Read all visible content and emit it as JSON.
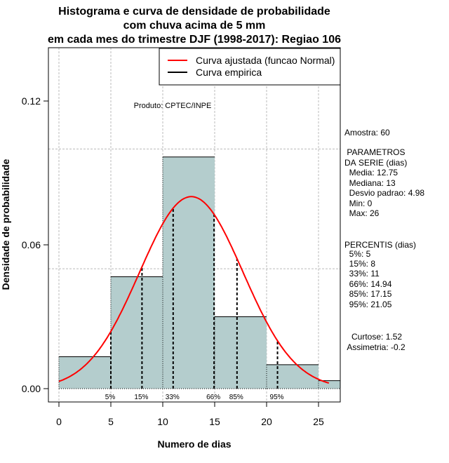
{
  "chart_data": {
    "type": "bar",
    "title": [
      "Histograma e curva de densidade de probabilidade",
      "com chuva acima de 5 mm",
      "em cada mes do trimestre DJF (1998-2017): Regiao 106"
    ],
    "xlabel": "Numero de dias",
    "ylabel": "Densidade de probabilidade",
    "xlim": [
      -1,
      27.1
    ],
    "ylim": [
      -0.0055,
      0.1365
    ],
    "xticks": [
      0,
      5,
      10,
      15,
      20,
      25
    ],
    "yticks": [
      0.0,
      0.06,
      0.12
    ],
    "ytick_labels": [
      "0.00",
      "0.06",
      "0.12"
    ],
    "ygrid": [
      0.05,
      0.1
    ],
    "bins": [
      [
        0,
        5
      ],
      [
        5,
        10
      ],
      [
        10,
        15
      ],
      [
        15,
        20
      ],
      [
        20,
        25
      ],
      [
        25,
        30
      ]
    ],
    "values": [
      0.01333,
      0.04667,
      0.09667,
      0.03,
      0.01,
      0.00333
    ],
    "normal_curve": {
      "mean": 12.75,
      "sd": 4.98,
      "from": 0,
      "to": 26
    },
    "percentiles": [
      {
        "label": "5%",
        "x": 5
      },
      {
        "label": "15%",
        "x": 8
      },
      {
        "label": "33%",
        "x": 11
      },
      {
        "label": "66%",
        "x": 14.94
      },
      {
        "label": "85%",
        "x": 17.15
      },
      {
        "label": "95%",
        "x": 21.05
      }
    ],
    "legend": [
      "Curva ajustada (funcao Normal)",
      "Curva empirica"
    ],
    "legend_position": "top-right",
    "colors": {
      "bar": "#b4cdcd",
      "curve": "#ff0000",
      "empirical": "#000000"
    },
    "annotation": "Produto: CPTEC/INPE"
  },
  "side_text": [
    "Amostra: 60",
    " PARAMETROS",
    "DA SERIE (dias)",
    "  Media: 12.75",
    "  Mediana: 13",
    "  Desvio padrao: 4.98",
    "  Min: 0",
    "  Max: 26",
    "PERCENTIS (dias)",
    "  5%: 5",
    "  15%: 8",
    "  33%: 11",
    "  66%: 14.94",
    "  85%: 17.15",
    "  95%: 21.05",
    "   Curtose: 1.52",
    " Assimetria: -0.2"
  ]
}
